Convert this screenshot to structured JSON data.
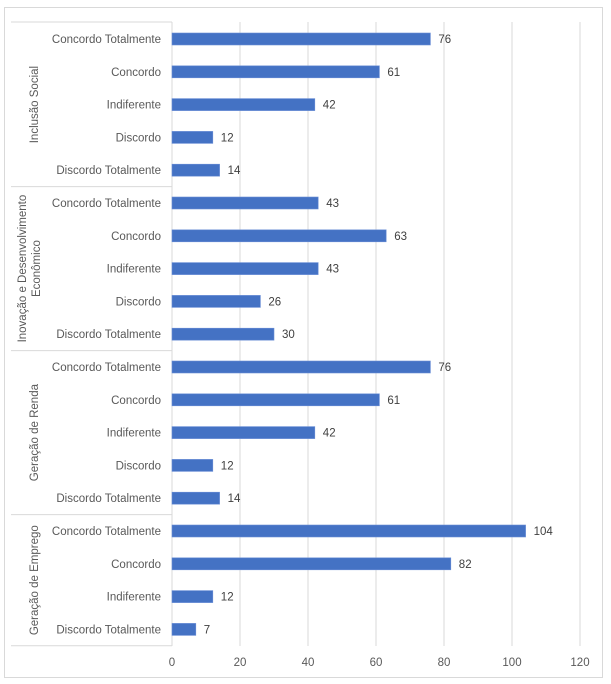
{
  "chart_data": {
    "type": "bar",
    "orientation": "horizontal",
    "title": "",
    "xlabel": "",
    "ylabel": "",
    "xlim": [
      0,
      120
    ],
    "x_ticks": [
      0,
      20,
      40,
      60,
      80,
      100,
      120
    ],
    "grid": true,
    "legend": "none",
    "bar_color": "#4472C4",
    "groups": [
      {
        "name": "Inclusão Social",
        "categories": [
          "Concordo Totalmente",
          "Concordo",
          "Indiferente",
          "Discordo",
          "Discordo Totalmente"
        ],
        "values": [
          76,
          61,
          42,
          12,
          14
        ]
      },
      {
        "name": "Inovação e Desenvolvimento Econômico",
        "name_lines": [
          "Inovação e Desenvolvimento",
          "Econômico"
        ],
        "categories": [
          "Concordo Totalmente",
          "Concordo",
          "Indiferente",
          "Discordo",
          "Discordo Totalmente"
        ],
        "values": [
          43,
          63,
          43,
          26,
          30
        ]
      },
      {
        "name": "Geração de Renda",
        "categories": [
          "Concordo Totalmente",
          "Concordo",
          "Indiferente",
          "Discordo",
          "Discordo Totalmente"
        ],
        "values": [
          76,
          61,
          42,
          12,
          14
        ]
      },
      {
        "name": "Geração de Emprego",
        "categories": [
          "Concordo Totalmente",
          "Concordo",
          "Indiferente",
          "Discordo Totalmente"
        ],
        "values": [
          104,
          82,
          12,
          7
        ]
      }
    ]
  }
}
